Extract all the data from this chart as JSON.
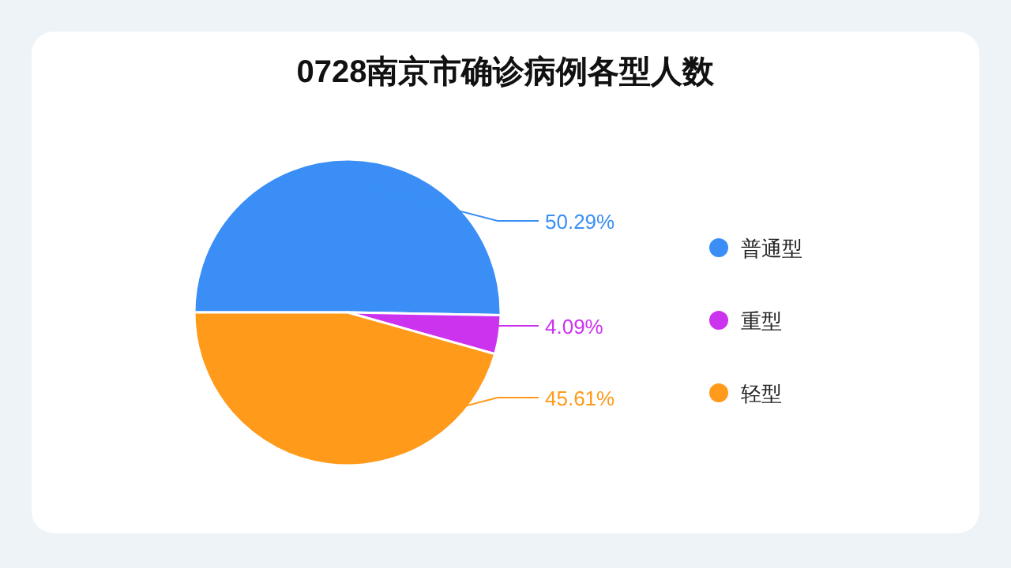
{
  "chart_data": {
    "type": "pie",
    "title": "0728南京市确诊病例各型人数",
    "categories": [
      "普通型",
      "重型",
      "轻型"
    ],
    "values": [
      50.29,
      4.09,
      45.61
    ],
    "colors": [
      "#3a8ef5",
      "#cc33ee",
      "#ff9a1a"
    ],
    "value_labels": [
      "50.29%",
      "4.09%",
      "45.61%"
    ],
    "legend": "right"
  }
}
